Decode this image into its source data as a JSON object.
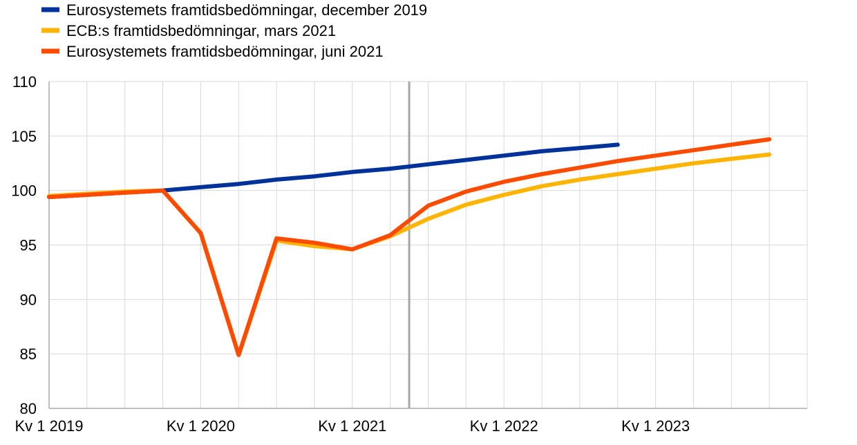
{
  "chart_data": {
    "type": "line",
    "title": "",
    "xlabel": "",
    "ylabel": "",
    "ylim": [
      80,
      110
    ],
    "yticks": [
      "80",
      "85",
      "90",
      "95",
      "100",
      "105",
      "110"
    ],
    "x": [
      "Kv 1 2019",
      "Kv 2 2019",
      "Kv 3 2019",
      "Kv 4 2019",
      "Kv 1 2020",
      "Kv 2 2020",
      "Kv 3 2020",
      "Kv 4 2020",
      "Kv 1 2021",
      "Kv 2 2021",
      "Kv 3 2021",
      "Kv 4 2021",
      "Kv 1 2022",
      "Kv 2 2022",
      "Kv 3 2022",
      "Kv 4 2022",
      "Kv 1 2023",
      "Kv 2 2023",
      "Kv 3 2023",
      "Kv 4 2023"
    ],
    "xtick_labels": [
      "Kv 1 2019",
      "Kv 1 2020",
      "Kv 1 2021",
      "Kv 1 2022",
      "Kv 1 2023"
    ],
    "grid": true,
    "legend_position": "top-left",
    "vertical_marker": "Kv 2 2021",
    "series": [
      {
        "name": "Eurosystemets framtidsbedömningar, december 2019",
        "color": "#003299",
        "values": [
          99.4,
          99.6,
          99.8,
          100.0,
          100.3,
          100.6,
          101.0,
          101.3,
          101.7,
          102.0,
          102.4,
          102.8,
          103.2,
          103.6,
          103.9,
          104.2,
          null,
          null,
          null,
          null
        ]
      },
      {
        "name": "ECB:s framtidsbedömningar, mars 2021",
        "color": "#FFB400",
        "values": [
          99.5,
          99.7,
          99.9,
          100.0,
          96.1,
          84.9,
          95.4,
          94.9,
          94.6,
          95.8,
          97.4,
          98.7,
          99.6,
          100.4,
          101.0,
          101.5,
          102.0,
          102.5,
          102.9,
          103.3
        ]
      },
      {
        "name": "Eurosystemets framtidsbedömningar, juni 2021",
        "color": "#FF4B00",
        "values": [
          99.4,
          99.6,
          99.8,
          100.0,
          96.1,
          84.9,
          95.6,
          95.2,
          94.6,
          95.9,
          98.6,
          99.9,
          100.8,
          101.5,
          102.1,
          102.7,
          103.2,
          103.7,
          104.2,
          104.7
        ]
      }
    ]
  }
}
